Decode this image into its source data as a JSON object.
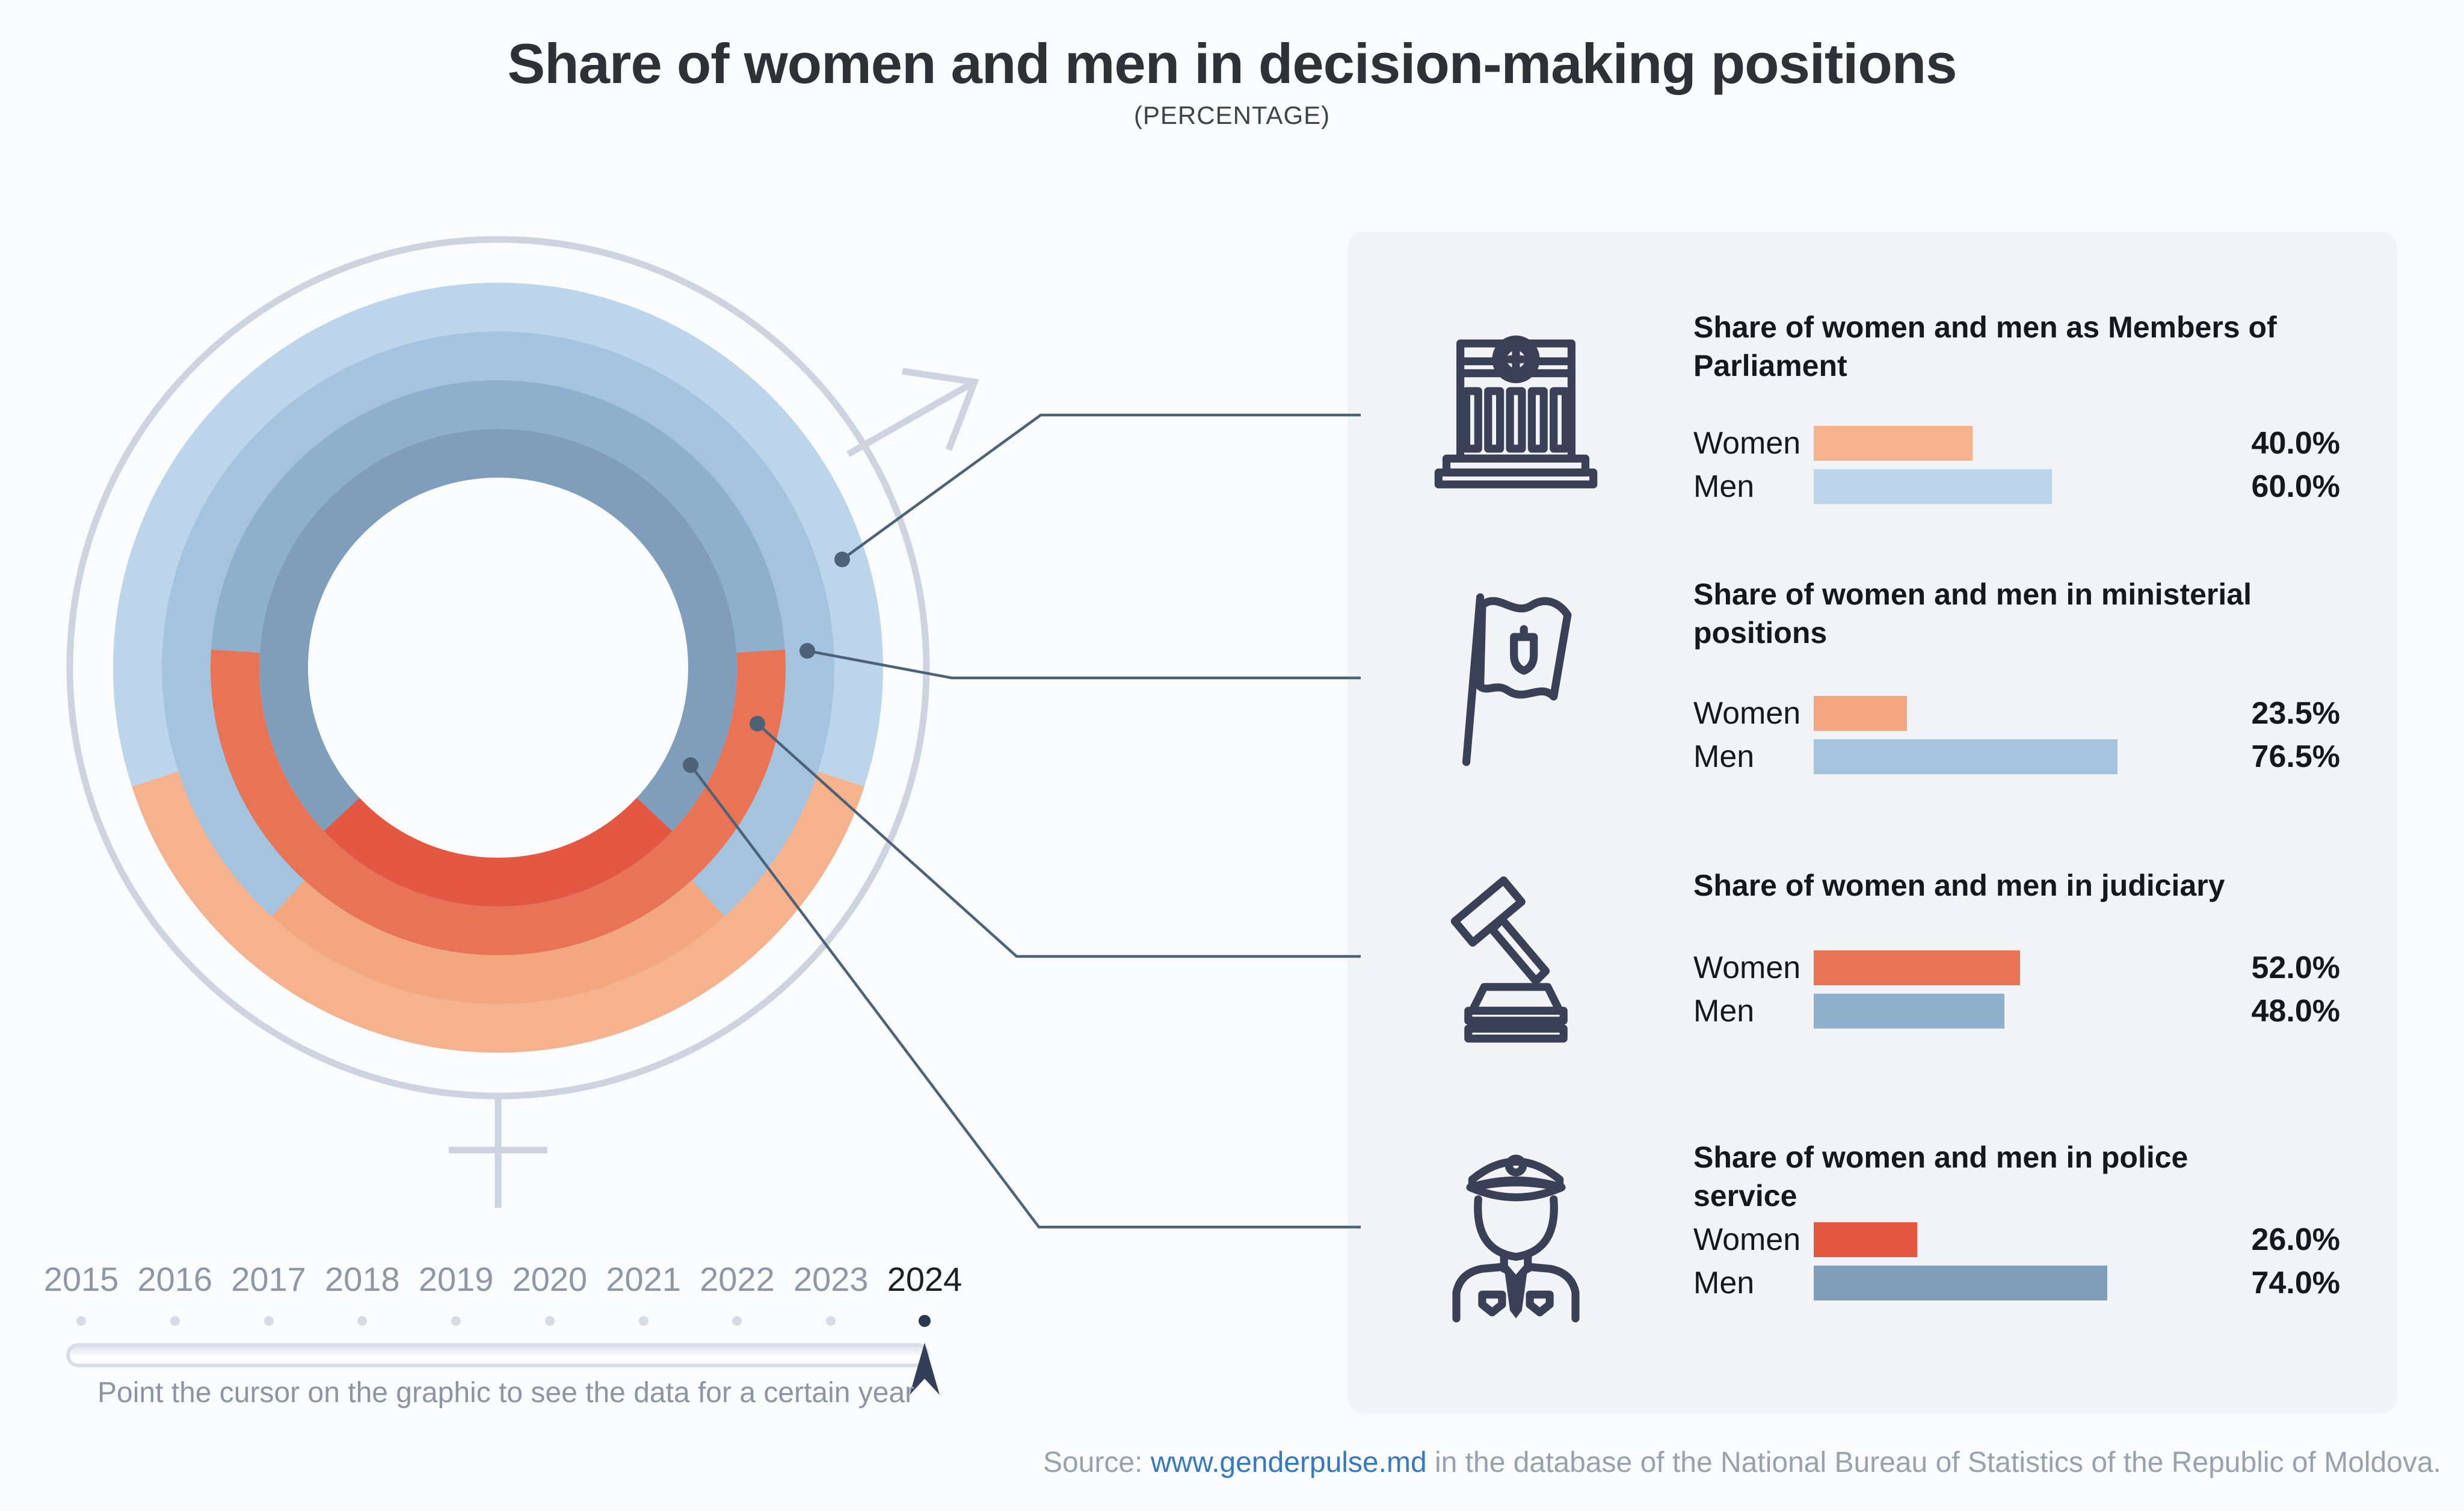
{
  "header": {
    "title": "Share of women and men in decision-making positions",
    "subtitle": "(PERCENTAGE)"
  },
  "chart_data": {
    "type": "ring",
    "description": "Four concentric rings (gender-symbol donut); each ring split between women (orange, bottom arc) and men (blue). Values shown for selected year 2024.",
    "unit": "percent",
    "selected_year": "2024",
    "rings_order": "outer-to-inner",
    "row_labels": {
      "women": "Women",
      "men": "Men"
    },
    "series": [
      {
        "label": "Share of women and men as Members of Parliament",
        "icon": "parliament-icon",
        "women": 40.0,
        "men": 60.0,
        "women_color": "#f6b28c",
        "men_color": "#bcd5eb"
      },
      {
        "label": "Share of women and men in ministerial positions",
        "icon": "flag-icon",
        "women": 23.5,
        "men": 76.5,
        "women_color": "#f4a67e",
        "men_color": "#a3c3de"
      },
      {
        "label": "Share of women and men in judiciary",
        "icon": "gavel-icon",
        "women": 52.0,
        "men": 48.0,
        "women_color": "#e97355",
        "men_color": "#8fb0cc"
      },
      {
        "label": "Share of women and men in police service",
        "icon": "police-icon",
        "women": 26.0,
        "men": 74.0,
        "women_color": "#e45741",
        "men_color": "#7e9ebc"
      }
    ]
  },
  "timeline": {
    "years": [
      "2015",
      "2016",
      "2017",
      "2018",
      "2019",
      "2020",
      "2021",
      "2022",
      "2023",
      "2024"
    ],
    "selected_year": "2024",
    "hint": "Point the cursor on the graphic to see the data for a certain year"
  },
  "footer": {
    "source_prefix": "Source: ",
    "source_link": "www.genderpulse.md",
    "source_suffix": " in the database of the National Bureau of Statistics of the Republic of Moldova."
  },
  "colors": {
    "page_background": "#fafbfc",
    "panel_background": "#f1f3f7",
    "text_dark": "#15181d",
    "text_gray": "#8b95a3",
    "link_blue": "#3779bd",
    "icon_navy": "#3a4157",
    "callout_line": "#4d6277",
    "gender_symbol_gray": "#cdd4df",
    "selected_year_marker": "#333f58"
  }
}
